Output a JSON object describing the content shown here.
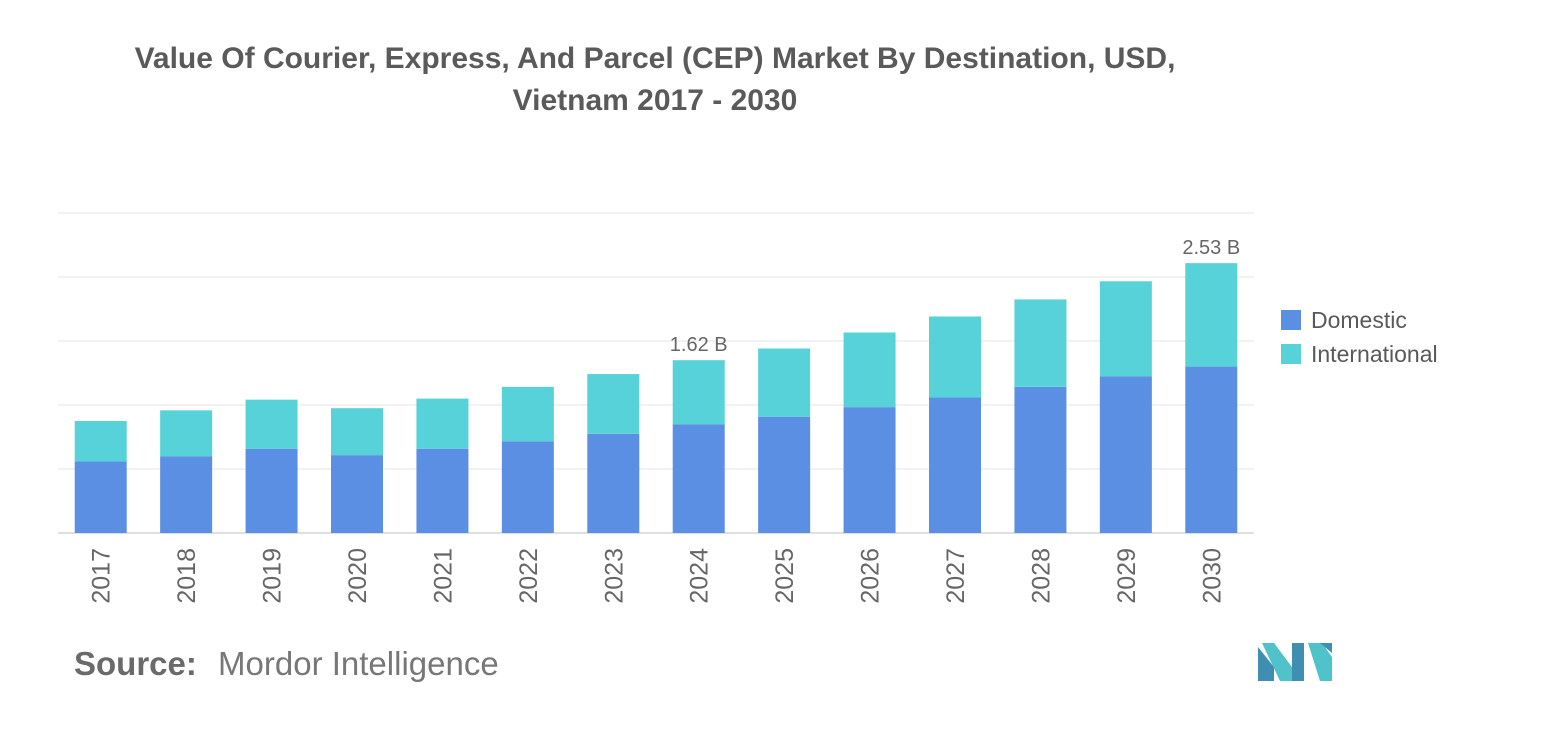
{
  "title_lines": [
    "Value Of Courier, Express, And Parcel (CEP) Market By Destination, USD,",
    "Vietnam 2017 - 2030"
  ],
  "source": {
    "label": "Source:",
    "value": "Mordor Intelligence"
  },
  "colors": {
    "domestic": "#5b8fe3",
    "international": "#57d2d9",
    "grid": "#e6e6e6",
    "axis": "#bfbfbf",
    "text": "#666666"
  },
  "chart_data": {
    "type": "bar",
    "stacked": true,
    "title": "Value Of Courier, Express, And Parcel (CEP) Market By Destination, USD, Vietnam 2017 - 2030",
    "xlabel": "",
    "ylabel": "",
    "ylim": [
      0,
      3.0
    ],
    "grid": true,
    "legend_position": "right",
    "categories": [
      "2017",
      "2018",
      "2019",
      "2020",
      "2021",
      "2022",
      "2023",
      "2024",
      "2025",
      "2026",
      "2027",
      "2028",
      "2029",
      "2030"
    ],
    "series": [
      {
        "name": "Domestic",
        "values": [
          0.67,
          0.72,
          0.79,
          0.73,
          0.79,
          0.86,
          0.93,
          1.02,
          1.09,
          1.18,
          1.27,
          1.37,
          1.47,
          1.56
        ]
      },
      {
        "name": "International",
        "values": [
          0.38,
          0.43,
          0.46,
          0.44,
          0.47,
          0.51,
          0.56,
          0.6,
          0.64,
          0.7,
          0.76,
          0.82,
          0.89,
          0.97
        ]
      }
    ],
    "annotations": [
      {
        "category": "2024",
        "text": "1.62 B"
      },
      {
        "category": "2030",
        "text": "2.53 B"
      }
    ]
  }
}
